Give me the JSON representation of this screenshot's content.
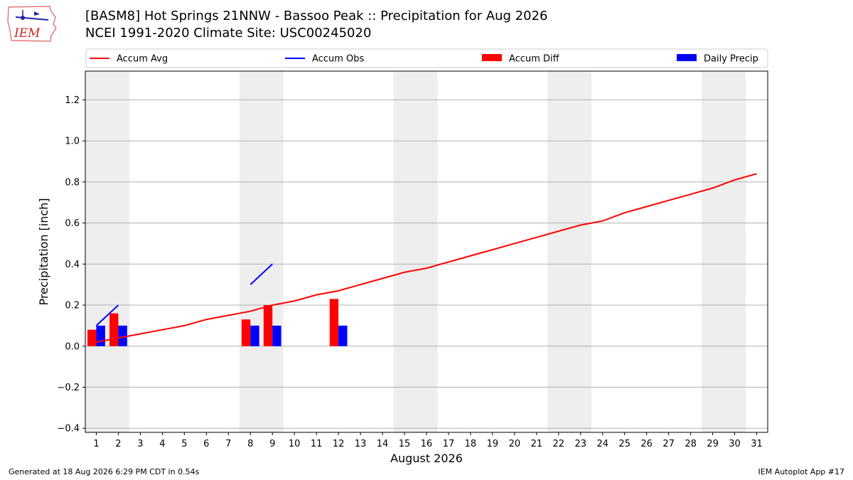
{
  "header": {
    "title_line1": "[BASM8] Hot Springs 21NNW - Bassoo Peak :: Precipitation for Aug 2026",
    "title_line2": "NCEI 1991-2020 Climate Site: USC00245020",
    "logo_text": "IEM"
  },
  "footer": {
    "generated": "Generated at 18 Aug 2026 6:29 PM CDT in 0.54s",
    "app": "IEM Autoplot App #17"
  },
  "colors": {
    "accum_avg": "#ff0000",
    "accum_obs": "#0000ff",
    "accum_diff": "#ff0000",
    "daily_precip": "#0000ff",
    "weekend_band": "#eeeeee",
    "grid": "#b0b0b0"
  },
  "chart_data": {
    "type": "bar",
    "xlabel": "August 2026",
    "ylabel": "Precipitation [inch]",
    "ylim": [
      -0.42,
      1.34
    ],
    "xlim": [
      0.5,
      31.5
    ],
    "x": [
      1,
      2,
      3,
      4,
      5,
      6,
      7,
      8,
      9,
      10,
      11,
      12,
      13,
      14,
      15,
      16,
      17,
      18,
      19,
      20,
      21,
      22,
      23,
      24,
      25,
      26,
      27,
      28,
      29,
      30,
      31
    ],
    "y_ticks": [
      -0.4,
      -0.2,
      0.0,
      0.2,
      0.4,
      0.6,
      0.8,
      1.0,
      1.2
    ],
    "y_tick_labels": [
      "−0.4",
      "−0.2",
      "0.0",
      "0.2",
      "0.4",
      "0.6",
      "0.8",
      "1.0",
      "1.2"
    ],
    "grid": true,
    "legend_placement": "top, above plot, horizontal",
    "weekend_bands": [
      [
        0.5,
        2.5
      ],
      [
        7.5,
        9.5
      ],
      [
        14.5,
        16.5
      ],
      [
        21.5,
        23.5
      ],
      [
        28.5,
        30.5
      ]
    ],
    "series": [
      {
        "name": "Accum Avg",
        "type": "line",
        "x": [
          1,
          2,
          3,
          4,
          5,
          6,
          7,
          8,
          9,
          10,
          11,
          12,
          13,
          14,
          15,
          16,
          17,
          18,
          19,
          20,
          21,
          22,
          23,
          24,
          25,
          26,
          27,
          28,
          29,
          30,
          31
        ],
        "values": [
          0.02,
          0.04,
          0.06,
          0.08,
          0.1,
          0.13,
          0.15,
          0.17,
          0.2,
          0.22,
          0.25,
          0.27,
          0.3,
          0.33,
          0.36,
          0.38,
          0.41,
          0.44,
          0.47,
          0.5,
          0.53,
          0.56,
          0.59,
          0.61,
          0.65,
          0.68,
          0.71,
          0.74,
          0.77,
          0.81,
          0.84
        ]
      },
      {
        "name": "Accum Obs",
        "type": "line",
        "segments": [
          {
            "x": [
              1,
              2
            ],
            "values": [
              0.1,
              0.2
            ]
          },
          {
            "x": [
              8,
              9
            ],
            "values": [
              0.3,
              0.4
            ]
          }
        ]
      },
      {
        "name": "Accum Diff",
        "type": "bar",
        "x": [
          1,
          2,
          8,
          9,
          12
        ],
        "values": [
          0.08,
          0.16,
          0.13,
          0.2,
          0.23
        ]
      },
      {
        "name": "Daily Precip",
        "type": "bar",
        "x": [
          1,
          2,
          8,
          9,
          12
        ],
        "values": [
          0.1,
          0.1,
          0.1,
          0.1,
          0.1
        ]
      }
    ]
  }
}
